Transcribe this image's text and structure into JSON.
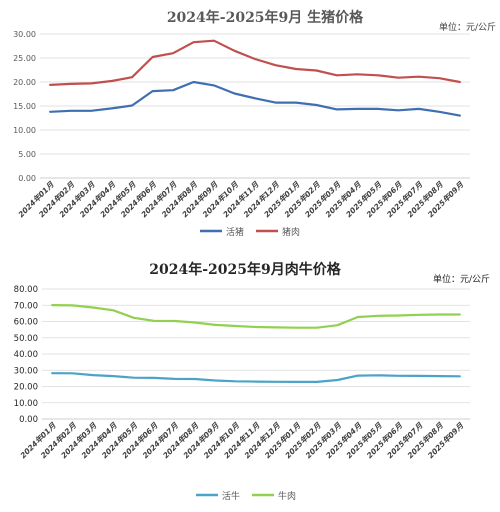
{
  "chart_data": [
    {
      "type": "line",
      "title": "2024年-2025年9月 生猪价格",
      "unit_label": "单位：元/公斤",
      "categories": [
        "2024年01月",
        "2024年02月",
        "2024年03月",
        "2024年04月",
        "2024年05月",
        "2024年06月",
        "2024年07月",
        "2024年08月",
        "2024年09月",
        "2024年10月",
        "2024年11月",
        "2024年12月",
        "2025年01月",
        "2025年02月",
        "2025年03月",
        "2025年04月",
        "2025年05月",
        "2025年06月",
        "2025年07月",
        "2025年08月",
        "2025年09月"
      ],
      "ylim": [
        0,
        30
      ],
      "y_ticks": [
        "0.00",
        "5.00",
        "10.00",
        "15.00",
        "20.00",
        "25.00",
        "30.00"
      ],
      "series": [
        {
          "name": "活猪",
          "color": "#3f6fb2",
          "values": [
            13.8,
            14.0,
            14.0,
            14.5,
            15.1,
            18.1,
            18.3,
            20.0,
            19.3,
            17.6,
            16.6,
            15.7,
            15.7,
            15.2,
            14.3,
            14.4,
            14.4,
            14.1,
            14.4,
            13.8,
            13.0
          ]
        },
        {
          "name": "猪肉",
          "color": "#c0504d",
          "values": [
            19.4,
            19.6,
            19.7,
            20.2,
            21.0,
            25.2,
            26.0,
            28.3,
            28.6,
            26.5,
            24.8,
            23.5,
            22.7,
            22.4,
            21.4,
            21.6,
            21.4,
            20.9,
            21.1,
            20.8,
            20.0
          ]
        }
      ],
      "grid": true,
      "legend_position": "bottom"
    },
    {
      "type": "line",
      "title": "2024年-2025年9月肉牛价格",
      "unit_label": "单位：元/公斤",
      "categories": [
        "2024年01月",
        "2024年02月",
        "2024年03月",
        "2024年04月",
        "2024年05月",
        "2024年06月",
        "2024年07月",
        "2024年08月",
        "2024年09月",
        "2024年10月",
        "2024年11月",
        "2024年12月",
        "2025年01月",
        "2025年02月",
        "2025年03月",
        "2025年04月",
        "2025年05月",
        "2025年06月",
        "2025年07月",
        "2025年08月",
        "2025年09月"
      ],
      "ylim": [
        0,
        80
      ],
      "y_ticks": [
        "0.00",
        "10.00",
        "20.00",
        "30.00",
        "40.00",
        "50.00",
        "60.00",
        "70.00",
        "80.00"
      ],
      "series": [
        {
          "name": "活牛",
          "color": "#4ba3c7",
          "values": [
            28.2,
            28.1,
            27.0,
            26.4,
            25.4,
            25.3,
            24.7,
            24.6,
            23.7,
            23.2,
            23.0,
            22.9,
            22.8,
            22.8,
            24.0,
            26.7,
            26.9,
            26.6,
            26.5,
            26.4,
            26.3
          ]
        },
        {
          "name": "牛肉",
          "color": "#92d050",
          "values": [
            70.1,
            69.9,
            68.6,
            66.9,
            62.3,
            60.4,
            60.3,
            59.4,
            57.9,
            57.2,
            56.6,
            56.4,
            56.2,
            56.2,
            57.7,
            62.8,
            63.5,
            63.7,
            64.1,
            64.3,
            64.3
          ]
        }
      ],
      "grid": true,
      "legend_position": "bottom"
    }
  ]
}
